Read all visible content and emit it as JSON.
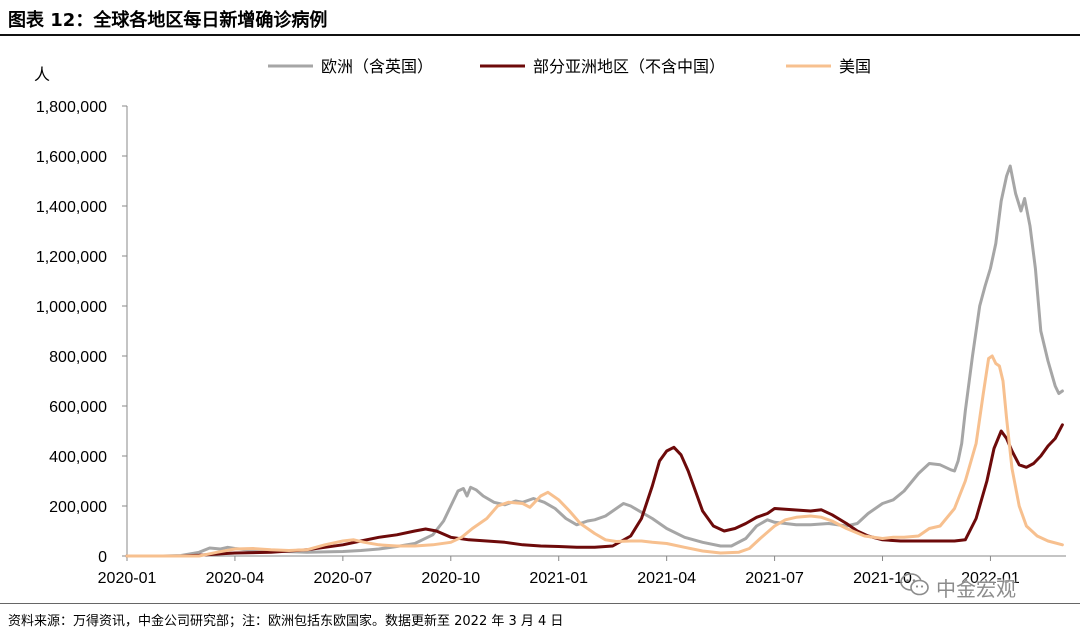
{
  "title": "图表 12：全球各地区每日新增确诊病例",
  "source": "资料来源：万得资讯，中金公司研究部；注：欧洲包括东欧国家。数据更新至 2022 年 3 月 4 日",
  "watermark": {
    "text": "中金宏观",
    "icon": "wechat-icon"
  },
  "chart_data": {
    "type": "line",
    "title": "",
    "xlabel": "",
    "ylabel": "人",
    "ylim": [
      0,
      1800000
    ],
    "y_ticks": [
      0,
      200000,
      400000,
      600000,
      800000,
      1000000,
      1200000,
      1400000,
      1600000,
      1800000
    ],
    "y_tick_labels": [
      "0",
      "200,000",
      "400,000",
      "600,000",
      "800,000",
      "1,000,000",
      "1,200,000",
      "1,400,000",
      "1,600,000",
      "1,800,000"
    ],
    "x_ticks": [
      "2020-01",
      "2020-04",
      "2020-07",
      "2020-10",
      "2021-01",
      "2021-04",
      "2021-07",
      "2021-10",
      "2022-01"
    ],
    "x_tick_index": [
      0,
      3,
      6,
      9,
      12,
      15,
      18,
      21,
      24
    ],
    "xlim": [
      0,
      26.1
    ],
    "grid": false,
    "legend_position": "top",
    "series": [
      {
        "name": "欧洲（含英国）",
        "color": "#a6a6a6",
        "points": [
          [
            0,
            0
          ],
          [
            1,
            0
          ],
          [
            1.5,
            2000
          ],
          [
            2,
            15000
          ],
          [
            2.3,
            32000
          ],
          [
            2.6,
            28000
          ],
          [
            2.8,
            35000
          ],
          [
            3.0,
            30000
          ],
          [
            3.5,
            22000
          ],
          [
            4,
            20000
          ],
          [
            5,
            15000
          ],
          [
            6,
            18000
          ],
          [
            6.5,
            22000
          ],
          [
            7,
            28000
          ],
          [
            7.5,
            38000
          ],
          [
            8,
            50000
          ],
          [
            8.5,
            85000
          ],
          [
            8.8,
            140000
          ],
          [
            9.0,
            200000
          ],
          [
            9.2,
            260000
          ],
          [
            9.35,
            270000
          ],
          [
            9.45,
            240000
          ],
          [
            9.55,
            275000
          ],
          [
            9.7,
            265000
          ],
          [
            9.9,
            240000
          ],
          [
            10.2,
            215000
          ],
          [
            10.5,
            205000
          ],
          [
            10.8,
            220000
          ],
          [
            11.0,
            215000
          ],
          [
            11.3,
            230000
          ],
          [
            11.6,
            215000
          ],
          [
            11.9,
            190000
          ],
          [
            12.2,
            150000
          ],
          [
            12.5,
            125000
          ],
          [
            12.8,
            140000
          ],
          [
            13.0,
            145000
          ],
          [
            13.3,
            160000
          ],
          [
            13.6,
            190000
          ],
          [
            13.8,
            210000
          ],
          [
            14.0,
            200000
          ],
          [
            14.3,
            175000
          ],
          [
            14.6,
            150000
          ],
          [
            15.0,
            110000
          ],
          [
            15.5,
            75000
          ],
          [
            16.0,
            55000
          ],
          [
            16.5,
            40000
          ],
          [
            16.8,
            40000
          ],
          [
            17.2,
            70000
          ],
          [
            17.5,
            120000
          ],
          [
            17.8,
            145000
          ],
          [
            18.0,
            135000
          ],
          [
            18.3,
            130000
          ],
          [
            18.6,
            125000
          ],
          [
            19,
            125000
          ],
          [
            19.5,
            130000
          ],
          [
            20,
            120000
          ],
          [
            20.3,
            130000
          ],
          [
            20.6,
            170000
          ],
          [
            21.0,
            210000
          ],
          [
            21.3,
            225000
          ],
          [
            21.6,
            260000
          ],
          [
            22.0,
            330000
          ],
          [
            22.3,
            370000
          ],
          [
            22.6,
            365000
          ],
          [
            22.9,
            345000
          ],
          [
            23.0,
            340000
          ],
          [
            23.1,
            380000
          ],
          [
            23.2,
            450000
          ],
          [
            23.3,
            580000
          ],
          [
            23.5,
            800000
          ],
          [
            23.7,
            1000000
          ],
          [
            23.85,
            1080000
          ],
          [
            24.0,
            1150000
          ],
          [
            24.15,
            1250000
          ],
          [
            24.3,
            1420000
          ],
          [
            24.45,
            1520000
          ],
          [
            24.55,
            1560000
          ],
          [
            24.7,
            1450000
          ],
          [
            24.85,
            1380000
          ],
          [
            24.95,
            1430000
          ],
          [
            25.1,
            1320000
          ],
          [
            25.25,
            1150000
          ],
          [
            25.4,
            900000
          ],
          [
            25.6,
            780000
          ],
          [
            25.8,
            680000
          ],
          [
            25.9,
            650000
          ],
          [
            26.0,
            660000
          ]
        ]
      },
      {
        "name": "部分亚洲地区（不含中国）",
        "color": "#6d0a0a",
        "points": [
          [
            0,
            0
          ],
          [
            1.5,
            0
          ],
          [
            2,
            3000
          ],
          [
            2.5,
            8000
          ],
          [
            3,
            12000
          ],
          [
            4,
            15000
          ],
          [
            5,
            25000
          ],
          [
            5.5,
            35000
          ],
          [
            6,
            45000
          ],
          [
            6.5,
            60000
          ],
          [
            7,
            75000
          ],
          [
            7.5,
            85000
          ],
          [
            8,
            100000
          ],
          [
            8.3,
            108000
          ],
          [
            8.6,
            100000
          ],
          [
            9.0,
            75000
          ],
          [
            9.5,
            65000
          ],
          [
            10,
            60000
          ],
          [
            10.5,
            55000
          ],
          [
            11,
            45000
          ],
          [
            11.5,
            40000
          ],
          [
            12,
            38000
          ],
          [
            12.5,
            35000
          ],
          [
            13,
            35000
          ],
          [
            13.5,
            40000
          ],
          [
            14,
            80000
          ],
          [
            14.3,
            150000
          ],
          [
            14.6,
            280000
          ],
          [
            14.8,
            380000
          ],
          [
            15.0,
            420000
          ],
          [
            15.2,
            435000
          ],
          [
            15.4,
            405000
          ],
          [
            15.6,
            340000
          ],
          [
            15.8,
            260000
          ],
          [
            16.0,
            180000
          ],
          [
            16.3,
            120000
          ],
          [
            16.6,
            100000
          ],
          [
            16.9,
            110000
          ],
          [
            17.2,
            130000
          ],
          [
            17.5,
            155000
          ],
          [
            17.8,
            170000
          ],
          [
            18.0,
            190000
          ],
          [
            18.5,
            185000
          ],
          [
            19.0,
            180000
          ],
          [
            19.3,
            185000
          ],
          [
            19.6,
            165000
          ],
          [
            20.0,
            130000
          ],
          [
            20.3,
            100000
          ],
          [
            20.6,
            80000
          ],
          [
            21,
            65000
          ],
          [
            21.5,
            60000
          ],
          [
            22,
            60000
          ],
          [
            22.5,
            60000
          ],
          [
            23,
            60000
          ],
          [
            23.3,
            65000
          ],
          [
            23.6,
            150000
          ],
          [
            23.9,
            300000
          ],
          [
            24.1,
            430000
          ],
          [
            24.3,
            500000
          ],
          [
            24.45,
            470000
          ],
          [
            24.6,
            420000
          ],
          [
            24.8,
            365000
          ],
          [
            25.0,
            355000
          ],
          [
            25.2,
            370000
          ],
          [
            25.4,
            400000
          ],
          [
            25.6,
            440000
          ],
          [
            25.8,
            470000
          ],
          [
            26.0,
            525000
          ]
        ]
      },
      {
        "name": "美国",
        "color": "#f7c08f",
        "points": [
          [
            0,
            0
          ],
          [
            2,
            0
          ],
          [
            2.5,
            15000
          ],
          [
            3,
            28000
          ],
          [
            3.5,
            30000
          ],
          [
            4,
            25000
          ],
          [
            4.5,
            22000
          ],
          [
            5,
            25000
          ],
          [
            5.5,
            45000
          ],
          [
            6,
            60000
          ],
          [
            6.3,
            65000
          ],
          [
            6.6,
            55000
          ],
          [
            7,
            45000
          ],
          [
            7.5,
            40000
          ],
          [
            8,
            40000
          ],
          [
            8.5,
            45000
          ],
          [
            9,
            55000
          ],
          [
            9.3,
            75000
          ],
          [
            9.6,
            110000
          ],
          [
            10,
            150000
          ],
          [
            10.3,
            200000
          ],
          [
            10.6,
            215000
          ],
          [
            11.0,
            210000
          ],
          [
            11.2,
            195000
          ],
          [
            11.5,
            240000
          ],
          [
            11.7,
            255000
          ],
          [
            12.0,
            225000
          ],
          [
            12.3,
            180000
          ],
          [
            12.6,
            130000
          ],
          [
            13.0,
            90000
          ],
          [
            13.3,
            65000
          ],
          [
            13.6,
            58000
          ],
          [
            14.0,
            60000
          ],
          [
            14.3,
            60000
          ],
          [
            14.6,
            55000
          ],
          [
            15.0,
            50000
          ],
          [
            15.5,
            35000
          ],
          [
            16.0,
            20000
          ],
          [
            16.5,
            12000
          ],
          [
            17.0,
            15000
          ],
          [
            17.3,
            30000
          ],
          [
            17.6,
            70000
          ],
          [
            18.0,
            120000
          ],
          [
            18.3,
            145000
          ],
          [
            18.6,
            155000
          ],
          [
            19.0,
            160000
          ],
          [
            19.3,
            155000
          ],
          [
            19.6,
            140000
          ],
          [
            20,
            110000
          ],
          [
            20.5,
            80000
          ],
          [
            21,
            70000
          ],
          [
            21.3,
            75000
          ],
          [
            21.6,
            75000
          ],
          [
            22,
            80000
          ],
          [
            22.3,
            110000
          ],
          [
            22.6,
            120000
          ],
          [
            23.0,
            190000
          ],
          [
            23.3,
            300000
          ],
          [
            23.6,
            450000
          ],
          [
            23.8,
            650000
          ],
          [
            23.95,
            790000
          ],
          [
            24.05,
            800000
          ],
          [
            24.15,
            770000
          ],
          [
            24.25,
            760000
          ],
          [
            24.35,
            700000
          ],
          [
            24.45,
            550000
          ],
          [
            24.6,
            350000
          ],
          [
            24.8,
            200000
          ],
          [
            25.0,
            120000
          ],
          [
            25.3,
            80000
          ],
          [
            25.6,
            60000
          ],
          [
            26.0,
            45000
          ]
        ]
      }
    ]
  }
}
